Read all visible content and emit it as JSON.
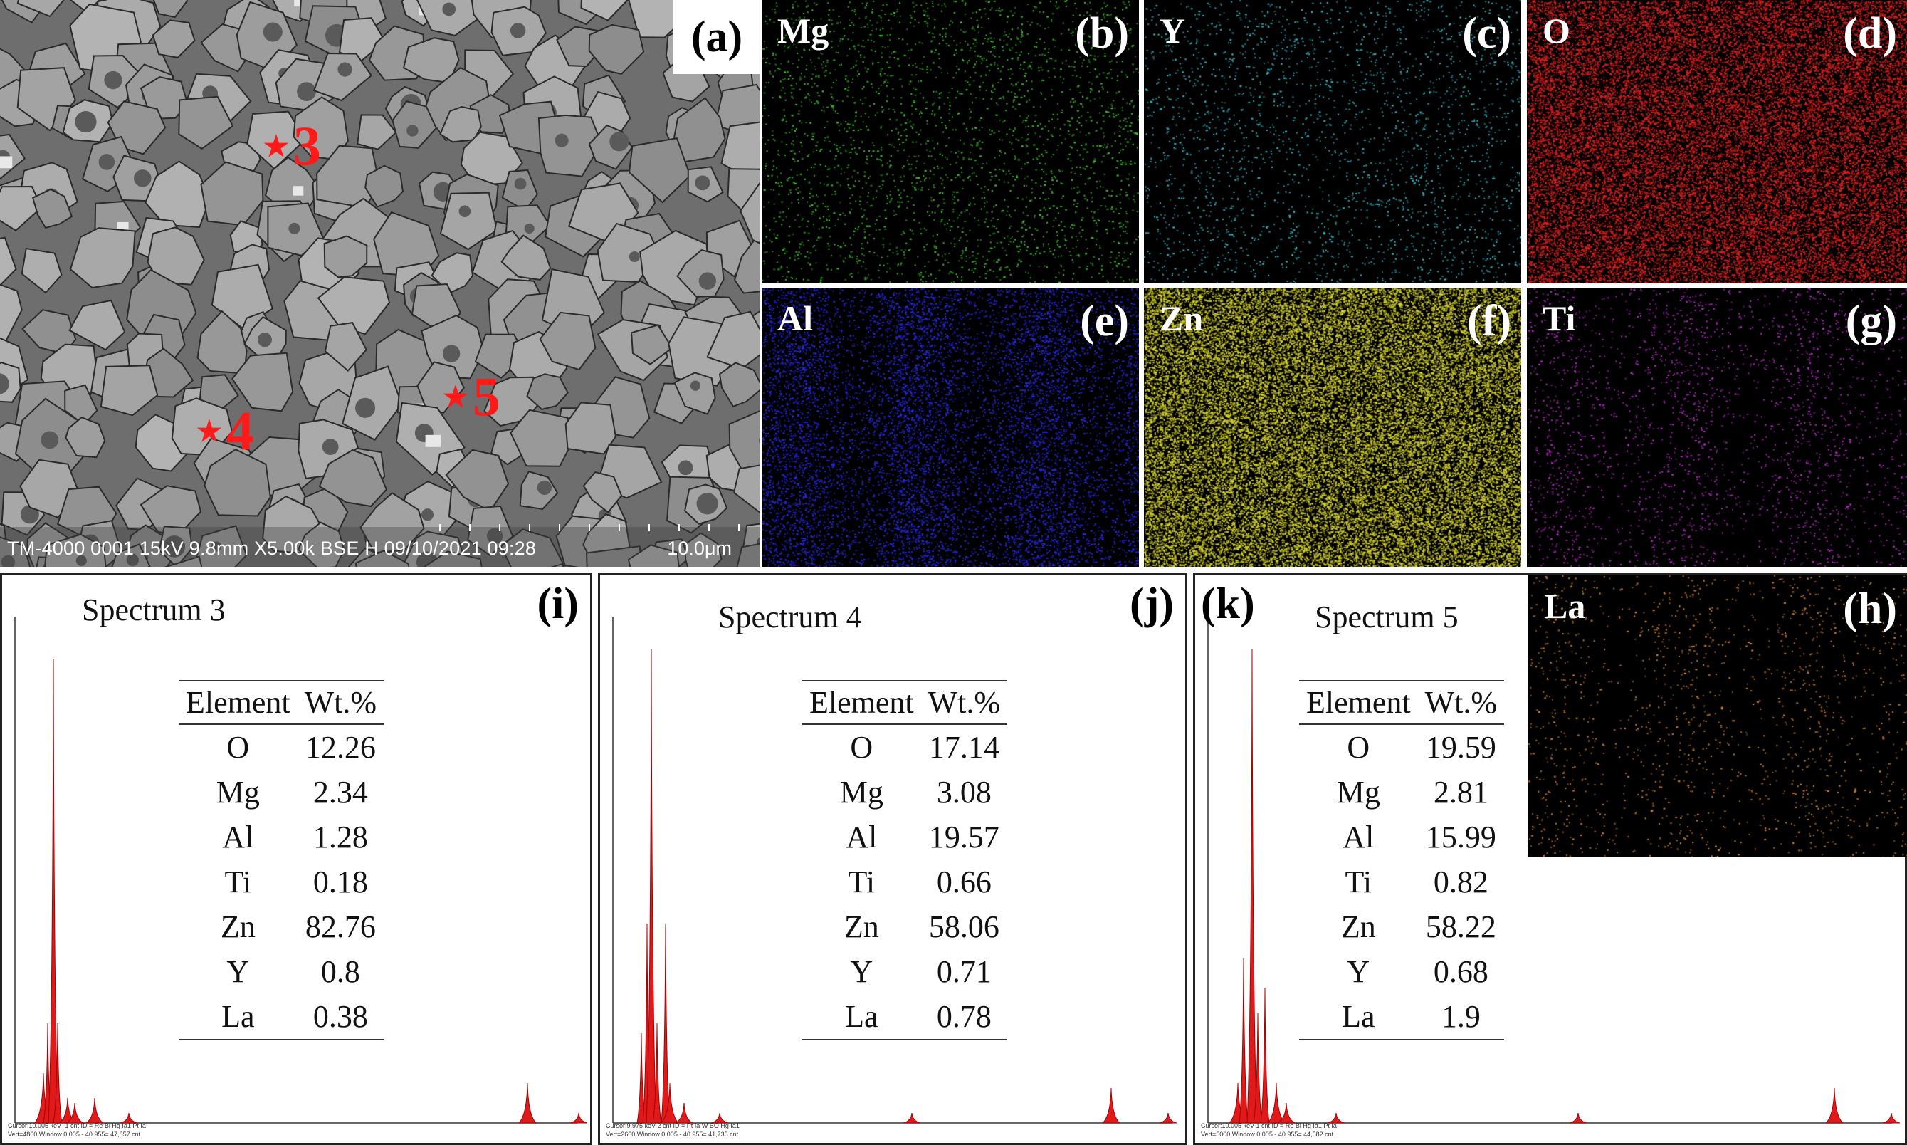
{
  "sem": {
    "panel_letter": "(a)",
    "footer": "TM-4000 0001 15kV 9.8mm X5.00k BSE H 09/10/2021 09:28",
    "scale_label": "10.0μm",
    "markers": [
      "3",
      "4",
      "5"
    ]
  },
  "maps": [
    {
      "element": "Mg",
      "letter": "(b)",
      "color": "#3fd52a"
    },
    {
      "element": "Y",
      "letter": "(c)",
      "color": "#2ec9d6"
    },
    {
      "element": "O",
      "letter": "(d)",
      "color": "#e0221e"
    },
    {
      "element": "Al",
      "letter": "(e)",
      "color": "#2a2cf0"
    },
    {
      "element": "Zn",
      "letter": "(f)",
      "color": "#d8d62e"
    },
    {
      "element": "Ti",
      "letter": "(g)",
      "color": "#c52ad6"
    },
    {
      "element": "La",
      "letter": "(h)",
      "color": "#e08a2a"
    }
  ],
  "spectra": [
    {
      "title": "Spectrum 3",
      "letter": "(i)",
      "header": [
        "Element",
        "Wt.%"
      ],
      "rows": [
        [
          "O",
          "12.26"
        ],
        [
          "Mg",
          "2.34"
        ],
        [
          "Al",
          "1.28"
        ],
        [
          "Ti",
          "0.18"
        ],
        [
          "Zn",
          "82.76"
        ],
        [
          "Y",
          "0.8"
        ],
        [
          "La",
          "0.38"
        ]
      ],
      "footer": [
        "Cursor:10.005 keV  -1 cnt  ID = Re Bi Hg Ia1 Pt Ia",
        "Vert=4860        Window 0.005 - 40.955= 47,857 cnt"
      ]
    },
    {
      "title": "Spectrum 4",
      "letter": "(j)",
      "header": [
        "Element",
        "Wt.%"
      ],
      "rows": [
        [
          "O",
          "17.14"
        ],
        [
          "Mg",
          "3.08"
        ],
        [
          "Al",
          "19.57"
        ],
        [
          "Ti",
          "0.66"
        ],
        [
          "Zn",
          "58.06"
        ],
        [
          "Y",
          "0.71"
        ],
        [
          "La",
          "0.78"
        ]
      ],
      "footer": [
        "Cursor:9.975 keV  2 cnt  ID = Pt Ia  W BO Hg Ia1",
        "Vert=2660        Window 0.005 - 40.955= 41,735 cnt"
      ]
    },
    {
      "title": "Spectrum 5",
      "letter": "(k)",
      "header": [
        "Element",
        "Wt.%"
      ],
      "rows": [
        [
          "O",
          "19.59"
        ],
        [
          "Mg",
          "2.81"
        ],
        [
          "Al",
          "15.99"
        ],
        [
          "Ti",
          "0.82"
        ],
        [
          "Zn",
          "58.22"
        ],
        [
          "Y",
          "0.68"
        ],
        [
          "La",
          "1.9"
        ]
      ],
      "footer": [
        "Cursor:10.005 keV  1 cnt  ID = Re Bi Hg Ia1 Pt Ia",
        "Vert=5000        Window 0.005 - 40.955= 44,582 cnt"
      ]
    }
  ]
}
